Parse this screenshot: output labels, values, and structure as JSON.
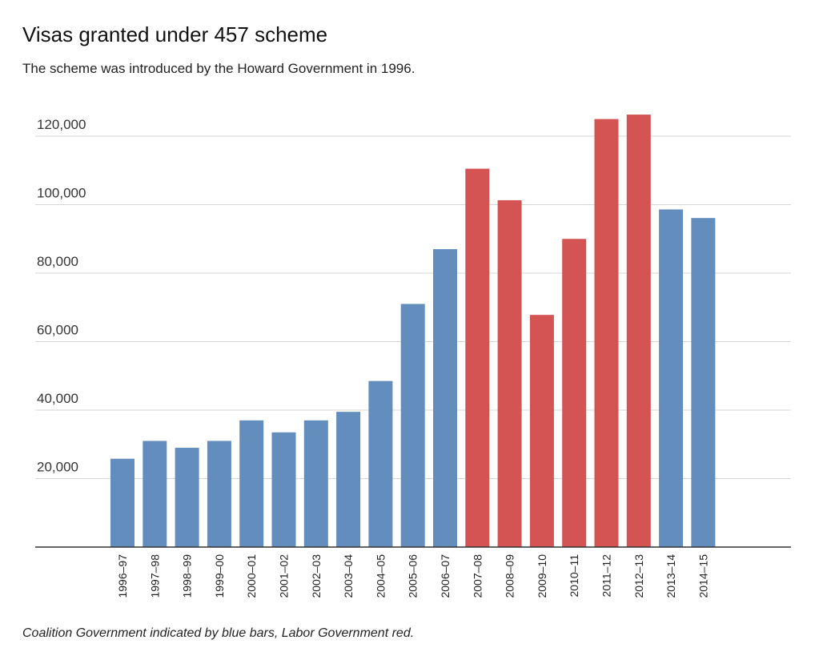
{
  "chart_data": {
    "type": "bar",
    "title": "Visas granted under 457 scheme",
    "subtitle": "The scheme was introduced by the Howard Government in 1996.",
    "footnote": "Coalition Government indicated by blue bars, Labor Government red.",
    "categories": [
      "1996–97",
      "1997–98",
      "1998–99",
      "1999–00",
      "2000–01",
      "2001–02",
      "2002–03",
      "2003–04",
      "2004–05",
      "2005–06",
      "2006–07",
      "2007–08",
      "2008–09",
      "2009–10",
      "2010–11",
      "2011–12",
      "2012–13",
      "2013–14",
      "2014–15"
    ],
    "values": [
      25800,
      31000,
      29000,
      31000,
      37000,
      33500,
      37000,
      39500,
      48500,
      71000,
      87000,
      110500,
      101300,
      67800,
      90000,
      125000,
      126300,
      98600,
      96100
    ],
    "government": [
      "Coalition",
      "Coalition",
      "Coalition",
      "Coalition",
      "Coalition",
      "Coalition",
      "Coalition",
      "Coalition",
      "Coalition",
      "Coalition",
      "Coalition",
      "Labor",
      "Labor",
      "Labor",
      "Labor",
      "Labor",
      "Labor",
      "Coalition",
      "Coalition"
    ],
    "colors": {
      "Coalition": "#628dbd",
      "Labor": "#d45353"
    },
    "y_ticks": [
      "20,000",
      "40,000",
      "60,000",
      "80,000",
      "100,000",
      "120,000"
    ],
    "y_tick_values": [
      20000,
      40000,
      60000,
      80000,
      100000,
      120000
    ],
    "ylim": [
      0,
      125000
    ],
    "grid": true,
    "xlabel": "",
    "ylabel": ""
  }
}
